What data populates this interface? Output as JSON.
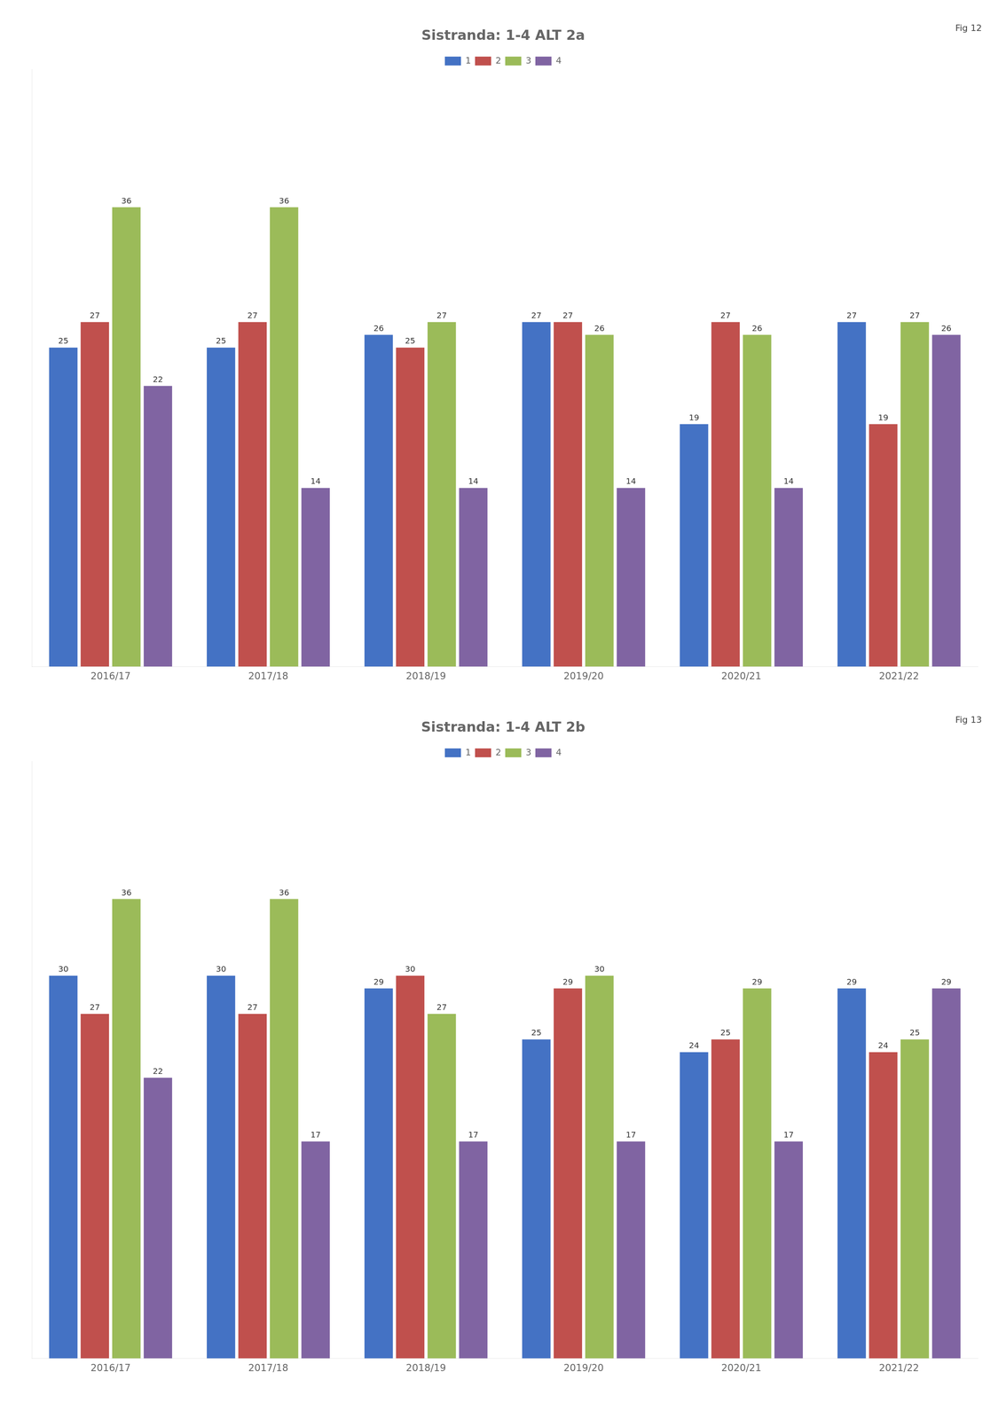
{
  "chart_data": [
    {
      "type": "bar",
      "title": "Sistranda: 1-4 ALT 2a",
      "annotations": [
        "Fig 12"
      ],
      "categories": [
        "2016/17",
        "2017/18",
        "2018/19",
        "2019/20",
        "2020/21",
        "2021/22"
      ],
      "series": [
        {
          "name": "1",
          "color": "#4472c4",
          "values": [
            25,
            25,
            26,
            27,
            19,
            27
          ]
        },
        {
          "name": "2",
          "color": "#c0504d",
          "values": [
            27,
            27,
            25,
            27,
            27,
            19
          ]
        },
        {
          "name": "3",
          "color": "#9bbb59",
          "values": [
            36,
            36,
            27,
            26,
            26,
            27
          ]
        },
        {
          "name": "4",
          "color": "#8064a2",
          "values": [
            22,
            14,
            14,
            14,
            14,
            26
          ]
        }
      ],
      "ylim": [
        0,
        46.8
      ],
      "grid": false,
      "legend": "top",
      "data_labels": true,
      "tick_labels": "x"
    },
    {
      "type": "bar",
      "title": "Sistranda: 1-4 ALT 2b",
      "annotations": [
        "Fig 13"
      ],
      "categories": [
        "2016/17",
        "2017/18",
        "2018/19",
        "2019/20",
        "2020/21",
        "2021/22"
      ],
      "series": [
        {
          "name": "1",
          "color": "#4472c4",
          "values": [
            30,
            30,
            29,
            25,
            24,
            29
          ]
        },
        {
          "name": "2",
          "color": "#c0504d",
          "values": [
            27,
            27,
            30,
            29,
            25,
            24
          ]
        },
        {
          "name": "3",
          "color": "#9bbb59",
          "values": [
            36,
            36,
            27,
            30,
            29,
            25
          ]
        },
        {
          "name": "4",
          "color": "#8064a2",
          "values": [
            22,
            17,
            17,
            17,
            17,
            29
          ]
        }
      ],
      "ylim": [
        0,
        46.8
      ],
      "grid": false,
      "legend": "top",
      "data_labels": true,
      "tick_labels": "x"
    }
  ]
}
